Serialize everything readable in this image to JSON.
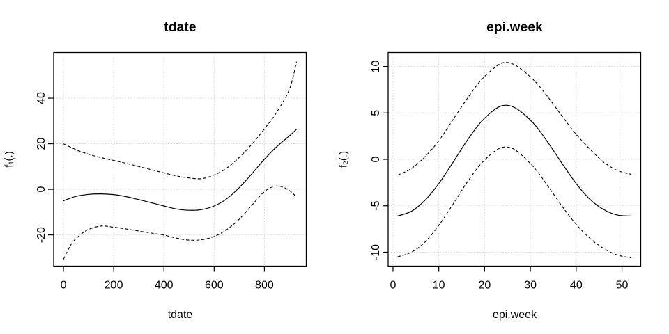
{
  "colors": {
    "background": "#ffffff",
    "curve": "#000000",
    "grid": "#d6d6d6",
    "box": "#000000",
    "text": "#000000"
  },
  "chart_data": [
    {
      "type": "line",
      "title": "tdate",
      "xlabel": "tdate",
      "ylabel": "f₁(.)",
      "xlim": [
        -38.9,
        966.7
      ],
      "ylim": [
        -33.7,
        60.0
      ],
      "xticks": [
        0,
        200,
        400,
        600,
        800
      ],
      "yticks": [
        -20,
        0,
        20,
        40
      ],
      "grid": true,
      "legend_position": "none",
      "series": [
        {
          "name": "fit",
          "style": "solid",
          "points": [
            [
              0,
              -5.0
            ],
            [
              50,
              -3.1
            ],
            [
              100,
              -2.2
            ],
            [
              150,
              -2.0
            ],
            [
              200,
              -2.3
            ],
            [
              250,
              -3.2
            ],
            [
              300,
              -4.5
            ],
            [
              350,
              -5.9
            ],
            [
              400,
              -7.3
            ],
            [
              450,
              -8.6
            ],
            [
              500,
              -9.2
            ],
            [
              550,
              -8.9
            ],
            [
              600,
              -7.3
            ],
            [
              650,
              -4.2
            ],
            [
              700,
              0.8
            ],
            [
              750,
              6.8
            ],
            [
              800,
              13.2
            ],
            [
              850,
              18.8
            ],
            [
              900,
              23.5
            ],
            [
              928,
              26.3
            ]
          ]
        },
        {
          "name": "upper-ci",
          "style": "dashed",
          "points": [
            [
              0,
              20.0
            ],
            [
              50,
              17.4
            ],
            [
              100,
              15.4
            ],
            [
              150,
              13.9
            ],
            [
              200,
              12.7
            ],
            [
              250,
              11.4
            ],
            [
              300,
              10.0
            ],
            [
              350,
              8.6
            ],
            [
              400,
              7.2
            ],
            [
              450,
              5.9
            ],
            [
              500,
              5.0
            ],
            [
              550,
              4.7
            ],
            [
              600,
              6.3
            ],
            [
              650,
              9.3
            ],
            [
              700,
              14.0
            ],
            [
              750,
              19.8
            ],
            [
              800,
              26.5
            ],
            [
              850,
              34.0
            ],
            [
              900,
              44.0
            ],
            [
              928,
              56.0
            ]
          ]
        },
        {
          "name": "lower-ci",
          "style": "dashed",
          "points": [
            [
              0,
              -30.7
            ],
            [
              30,
              -24.3
            ],
            [
              60,
              -20.6
            ],
            [
              100,
              -17.6
            ],
            [
              150,
              -16.1
            ],
            [
              200,
              -16.6
            ],
            [
              250,
              -17.4
            ],
            [
              300,
              -18.3
            ],
            [
              350,
              -19.2
            ],
            [
              400,
              -20.1
            ],
            [
              450,
              -21.4
            ],
            [
              500,
              -22.3
            ],
            [
              550,
              -22.1
            ],
            [
              600,
              -20.7
            ],
            [
              650,
              -17.7
            ],
            [
              700,
              -13.1
            ],
            [
              750,
              -7.0
            ],
            [
              800,
              -1.0
            ],
            [
              840,
              1.3
            ],
            [
              870,
              1.1
            ],
            [
              900,
              -0.6
            ],
            [
              928,
              -3.3
            ]
          ]
        }
      ]
    },
    {
      "type": "line",
      "title": "epi.week",
      "xlabel": "epi.week",
      "ylabel": "f₂(.)",
      "xlim": [
        -1.06,
        54.1
      ],
      "ylim": [
        -11.5,
        11.5
      ],
      "xticks": [
        0,
        10,
        20,
        30,
        40,
        50
      ],
      "yticks": [
        -10,
        -5,
        0,
        5,
        10
      ],
      "grid": true,
      "legend_position": "none",
      "series": [
        {
          "name": "fit",
          "style": "solid",
          "points": [
            [
              1,
              -6.1
            ],
            [
              4,
              -5.6
            ],
            [
              7,
              -4.4
            ],
            [
              10,
              -2.6
            ],
            [
              13,
              -0.4
            ],
            [
              16,
              1.9
            ],
            [
              19,
              3.9
            ],
            [
              22,
              5.3
            ],
            [
              24,
              5.8
            ],
            [
              26,
              5.7
            ],
            [
              28,
              5.1
            ],
            [
              31,
              3.7
            ],
            [
              34,
              1.7
            ],
            [
              37,
              -0.5
            ],
            [
              40,
              -2.6
            ],
            [
              43,
              -4.3
            ],
            [
              46,
              -5.4
            ],
            [
              49,
              -6.0
            ],
            [
              52,
              -6.1
            ]
          ]
        },
        {
          "name": "upper-ci",
          "style": "dashed",
          "points": [
            [
              1,
              -1.7
            ],
            [
              4,
              -1.0
            ],
            [
              7,
              0.3
            ],
            [
              10,
              2.0
            ],
            [
              13,
              4.2
            ],
            [
              16,
              6.4
            ],
            [
              19,
              8.4
            ],
            [
              22,
              9.8
            ],
            [
              24,
              10.4
            ],
            [
              26,
              10.3
            ],
            [
              28,
              9.7
            ],
            [
              31,
              8.4
            ],
            [
              34,
              6.6
            ],
            [
              37,
              4.6
            ],
            [
              40,
              2.7
            ],
            [
              43,
              1.1
            ],
            [
              46,
              -0.3
            ],
            [
              49,
              -1.2
            ],
            [
              52,
              -1.6
            ]
          ]
        },
        {
          "name": "lower-ci",
          "style": "dashed",
          "points": [
            [
              1,
              -10.5
            ],
            [
              4,
              -10.0
            ],
            [
              7,
              -8.9
            ],
            [
              10,
              -7.1
            ],
            [
              13,
              -4.9
            ],
            [
              16,
              -2.6
            ],
            [
              19,
              -0.6
            ],
            [
              22,
              0.8
            ],
            [
              24,
              1.3
            ],
            [
              26,
              1.2
            ],
            [
              28,
              0.5
            ],
            [
              31,
              -1.0
            ],
            [
              34,
              -3.0
            ],
            [
              37,
              -5.1
            ],
            [
              40,
              -7.0
            ],
            [
              43,
              -8.5
            ],
            [
              46,
              -9.6
            ],
            [
              49,
              -10.3
            ],
            [
              52,
              -10.6
            ]
          ]
        }
      ]
    }
  ]
}
